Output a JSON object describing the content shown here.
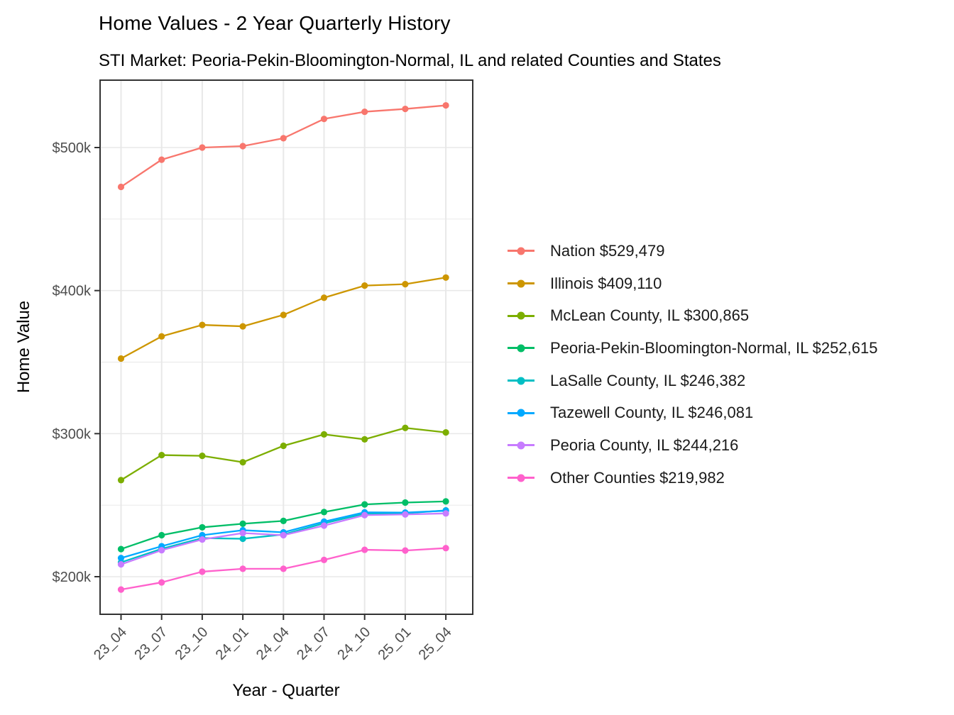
{
  "title": "Home Values - 2 Year Quarterly History",
  "subtitle": "STI Market: Peoria-Pekin-Bloomington-Normal, IL and related Counties and States",
  "x_axis": {
    "label": "Year - Quarter",
    "ticks": [
      "23_04",
      "23_07",
      "23_10",
      "24_01",
      "24_04",
      "24_07",
      "24_10",
      "25_01",
      "25_04"
    ]
  },
  "y_axis": {
    "label": "Home Value",
    "ticks": [
      "$200k",
      "$300k",
      "$400k",
      "$500k"
    ],
    "tick_values": [
      200000,
      300000,
      400000,
      500000
    ],
    "minor_tick_values": [
      250000,
      350000,
      450000
    ]
  },
  "palette": {
    "tick_label_color": "#4D4D4D",
    "gridline_color": "#E8E8E8",
    "panel_border_color": "#333333",
    "background": "#FFFFFF"
  },
  "chart_data": {
    "type": "line",
    "title": "Home Values - 2 Year Quarterly History",
    "subtitle": "STI Market: Peoria-Pekin-Bloomington-Normal, IL and related Counties and States",
    "xlabel": "Year - Quarter",
    "ylabel": "Home Value",
    "ylim": [
      174000,
      547000
    ],
    "grid": "on",
    "legend_position": "right",
    "categories": [
      "23_04",
      "23_07",
      "23_10",
      "24_01",
      "24_04",
      "24_07",
      "24_10",
      "25_01",
      "25_04"
    ],
    "series": [
      {
        "name": "Nation",
        "legend_label": "Nation $529,479",
        "latest_value": 529479,
        "color": "#F8766D",
        "values": [
          472500,
          491500,
          500000,
          501000,
          506500,
          520000,
          525000,
          527000,
          529479
        ]
      },
      {
        "name": "Illinois",
        "legend_label": "Illinois $409,110",
        "latest_value": 409110,
        "color": "#CD9600",
        "values": [
          352500,
          368000,
          376000,
          375000,
          383000,
          395000,
          403500,
          404500,
          409110
        ]
      },
      {
        "name": "McLean County, IL",
        "legend_label": "McLean County, IL $300,865",
        "latest_value": 300865,
        "color": "#7CAE00",
        "values": [
          267500,
          285000,
          284500,
          280000,
          291500,
          299500,
          296000,
          304000,
          300865
        ]
      },
      {
        "name": "Peoria-Pekin-Bloomington-Normal, IL",
        "legend_label": "Peoria-Pekin-Bloomington-Normal, IL $252,615",
        "latest_value": 252615,
        "color": "#00BE67",
        "values": [
          219300,
          229000,
          234500,
          237000,
          239000,
          245200,
          250500,
          251800,
          252615
        ]
      },
      {
        "name": "LaSalle County, IL",
        "legend_label": "LaSalle County, IL $246,382",
        "latest_value": 246382,
        "color": "#00BFC4",
        "values": [
          210000,
          219500,
          227000,
          226500,
          229500,
          237300,
          244000,
          244300,
          246382
        ]
      },
      {
        "name": "Tazewell County, IL",
        "legend_label": "Tazewell County, IL $246,081",
        "latest_value": 246081,
        "color": "#00A9FF",
        "values": [
          213000,
          221300,
          229000,
          232500,
          231000,
          238500,
          245000,
          244800,
          246081
        ]
      },
      {
        "name": "Peoria County, IL",
        "legend_label": "Peoria County, IL $244,216",
        "latest_value": 244216,
        "color": "#C77CFF",
        "values": [
          208600,
          218500,
          226000,
          230500,
          229000,
          235700,
          243000,
          243500,
          244216
        ]
      },
      {
        "name": "Other Counties",
        "legend_label": "Other Counties $219,982",
        "latest_value": 219982,
        "color": "#FF61CC",
        "values": [
          191000,
          196000,
          203500,
          205500,
          205500,
          211700,
          218800,
          218300,
          219982
        ]
      }
    ]
  }
}
